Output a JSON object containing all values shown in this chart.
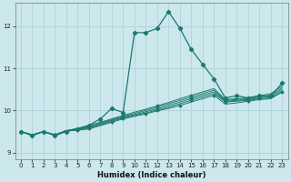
{
  "xlabel": "Humidex (Indice chaleur)",
  "bg_color": "#cce8ec",
  "grid_color": "#aacdd4",
  "line_color": "#1a7a6e",
  "xlim": [
    -0.5,
    23.5
  ],
  "ylim": [
    8.85,
    12.55
  ],
  "yticks": [
    9,
    10,
    11,
    12
  ],
  "xticks": [
    0,
    1,
    2,
    3,
    4,
    5,
    6,
    7,
    8,
    9,
    10,
    11,
    12,
    13,
    14,
    15,
    16,
    17,
    18,
    19,
    20,
    21,
    22,
    23
  ],
  "main_series": {
    "x": [
      0,
      1,
      2,
      3,
      4,
      5,
      6,
      7,
      8,
      9,
      10,
      11,
      12,
      13,
      14,
      15,
      16,
      17,
      18,
      19,
      20,
      21,
      22,
      23
    ],
    "y": [
      9.5,
      9.4,
      9.5,
      9.4,
      9.5,
      9.55,
      9.65,
      9.8,
      10.05,
      9.95,
      11.85,
      11.85,
      11.95,
      12.35,
      11.95,
      11.45,
      11.1,
      10.75,
      10.3,
      10.35,
      10.3,
      10.35,
      10.35,
      10.65
    ]
  },
  "bg_lines": [
    {
      "x": [
        0,
        1,
        2,
        3,
        4,
        5,
        6,
        7,
        8,
        9,
        10,
        11,
        12,
        13,
        14,
        15,
        16,
        17,
        18,
        19,
        20,
        21,
        22,
        23
      ],
      "y": [
        9.5,
        9.42,
        9.5,
        9.42,
        9.52,
        9.58,
        9.65,
        9.72,
        9.8,
        9.88,
        9.96,
        10.03,
        10.11,
        10.19,
        10.28,
        10.36,
        10.44,
        10.52,
        10.26,
        10.28,
        10.3,
        10.35,
        10.4,
        10.58
      ]
    },
    {
      "x": [
        0,
        1,
        2,
        3,
        4,
        5,
        6,
        7,
        8,
        9,
        10,
        11,
        12,
        13,
        14,
        15,
        16,
        17,
        18,
        19,
        20,
        21,
        22,
        23
      ],
      "y": [
        9.5,
        9.42,
        9.5,
        9.42,
        9.52,
        9.56,
        9.62,
        9.7,
        9.78,
        9.86,
        9.93,
        10.0,
        10.08,
        10.16,
        10.24,
        10.32,
        10.4,
        10.48,
        10.24,
        10.26,
        10.28,
        10.32,
        10.36,
        10.54
      ]
    },
    {
      "x": [
        0,
        1,
        2,
        3,
        4,
        5,
        6,
        7,
        8,
        9,
        10,
        11,
        12,
        13,
        14,
        15,
        16,
        17,
        18,
        19,
        20,
        21,
        22,
        23
      ],
      "y": [
        9.5,
        9.42,
        9.5,
        9.42,
        9.52,
        9.55,
        9.6,
        9.68,
        9.76,
        9.84,
        9.9,
        9.97,
        10.04,
        10.12,
        10.2,
        10.28,
        10.36,
        10.44,
        10.22,
        10.24,
        10.26,
        10.3,
        10.33,
        10.5
      ]
    },
    {
      "x": [
        0,
        1,
        2,
        3,
        4,
        5,
        6,
        7,
        8,
        9,
        10,
        11,
        12,
        13,
        14,
        15,
        16,
        17,
        18,
        19,
        20,
        21,
        22,
        23
      ],
      "y": [
        9.5,
        9.42,
        9.5,
        9.42,
        9.52,
        9.54,
        9.58,
        9.66,
        9.74,
        9.82,
        9.88,
        9.94,
        10.01,
        10.08,
        10.16,
        10.24,
        10.32,
        10.4,
        10.2,
        10.22,
        10.24,
        10.28,
        10.3,
        10.46
      ]
    },
    {
      "x": [
        2,
        3,
        4,
        5,
        6,
        7,
        8,
        9,
        10,
        11,
        12,
        13,
        14,
        15,
        16,
        17,
        18,
        19,
        20,
        21,
        22,
        23
      ],
      "y": [
        9.5,
        9.42,
        9.52,
        9.53,
        9.56,
        9.64,
        9.72,
        9.8,
        9.86,
        9.92,
        9.99,
        10.05,
        10.12,
        10.2,
        10.28,
        10.36,
        10.15,
        10.18,
        10.22,
        10.26,
        10.28,
        10.44
      ]
    }
  ]
}
